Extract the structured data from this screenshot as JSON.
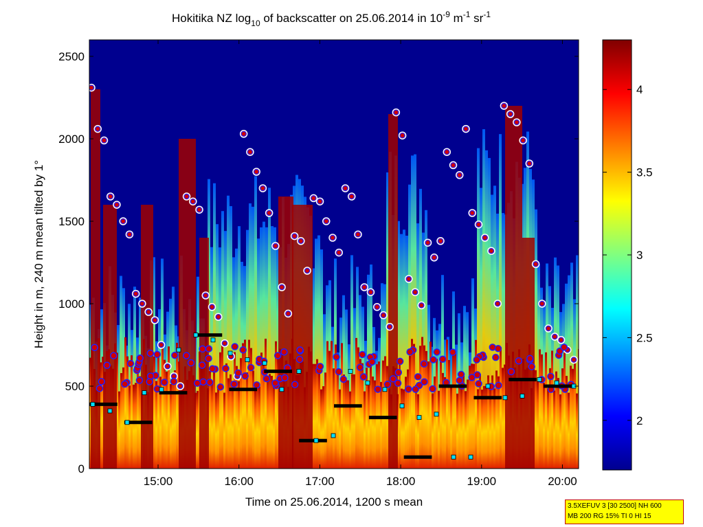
{
  "chart_data": {
    "type": "heatmap",
    "title_parts": {
      "pre": "Hokitika NZ log",
      "sub": "10",
      "mid": " of backscatter on 25.06.2014 in 10",
      "sup1": "-9",
      "mid2": " m",
      "sup2": "-1",
      "mid3": " sr",
      "sup3": "-1"
    },
    "xlabel": "Time on 25.06.2014, 1200 s mean",
    "ylabel": "Height in m, 240 m mean tilted by 1°",
    "x_ticks": [
      "15:00",
      "16:00",
      "17:00",
      "18:00",
      "19:00",
      "20:00"
    ],
    "x_tick_hours": [
      15,
      16,
      17,
      18,
      19,
      20
    ],
    "xlim_hours": [
      14.15,
      20.2
    ],
    "y_ticks": [
      "0",
      "500",
      "1000",
      "1500",
      "2000",
      "2500"
    ],
    "y_tick_values": [
      0,
      500,
      1000,
      1500,
      2000,
      2500
    ],
    "ylim": [
      0,
      2600
    ],
    "colorbar": {
      "ticks": [
        "2",
        "2.5",
        "3",
        "3.5",
        "4"
      ],
      "tick_values": [
        2,
        2.5,
        3,
        3.5,
        4
      ],
      "range": [
        1.7,
        4.3
      ],
      "colormap": "jet"
    },
    "overlays": {
      "cloud_base_points": {
        "marker": "circle",
        "fill": "#d00000",
        "edge": "#2020ff",
        "heights_m_approx": [
          2310,
          2060,
          1990,
          1650,
          1600,
          1500,
          1420,
          1060,
          1000,
          950,
          900,
          750,
          620,
          560,
          500,
          1650,
          1620,
          1570,
          1050,
          980,
          920,
          760,
          680,
          560,
          2030,
          1920,
          1800,
          1700,
          1550,
          1350,
          1100,
          940,
          1410,
          1380,
          1200,
          1640,
          1620,
          1500,
          1400,
          1310,
          1700,
          1650,
          1420,
          1100,
          1070,
          980,
          930,
          860,
          2160,
          2020,
          1150,
          1070,
          990,
          1370,
          1280,
          1380,
          1920,
          1840,
          1780,
          2060,
          1550,
          1480,
          1400,
          1320,
          1000,
          2200,
          2150,
          2100,
          1990,
          1850,
          1240,
          1000,
          850,
          800,
          780,
          720,
          660
        ]
      },
      "mixing_layer_points": {
        "marker": "square",
        "fill": "#00e0ff",
        "heights_m_approx": [
          390,
          350,
          280,
          460,
          480,
          720,
          810,
          780,
          700,
          660,
          640,
          480,
          590,
          170,
          200,
          590,
          520,
          480,
          380,
          310,
          330,
          70,
          70,
          500,
          430,
          440,
          540,
          520,
          500
        ]
      },
      "black_line_segments": {
        "color": "#000000",
        "heights_m_approx": [
          390,
          280,
          460,
          810,
          480,
          590,
          170,
          380,
          310,
          70,
          500,
          430,
          540,
          500
        ]
      }
    }
  },
  "info_box": {
    "line1": "3.5XEFUV 3 [30 2500] NH 600",
    "line2": "MB 200 RG 15% TI 0 HI 15",
    "background": "#ffff00",
    "border": "#c00000"
  },
  "colors": {
    "background_low_signal": "#00008f",
    "high_backscatter": "#800000"
  }
}
